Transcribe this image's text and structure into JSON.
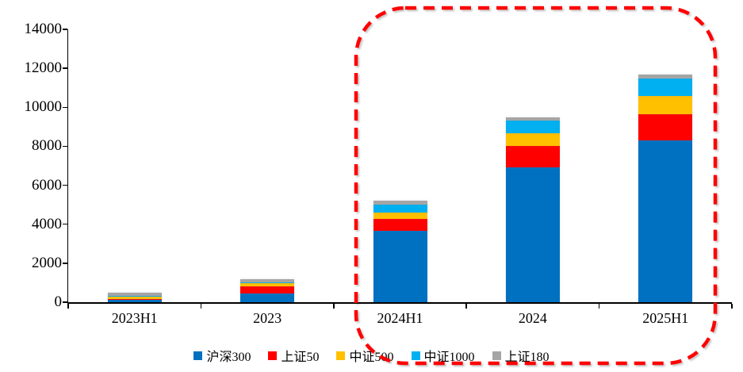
{
  "page": {
    "background": "#FFFFFF"
  },
  "chart_data": {
    "type": "bar",
    "stacked": true,
    "title": "",
    "xlabel": "",
    "ylabel": "",
    "categories": [
      "2023H1",
      "2023",
      "2024H1",
      "2024",
      "2025H1"
    ],
    "series": [
      {
        "name": "沪深300",
        "color": "#0070C0",
        "values": [
          160,
          450,
          3650,
          6900,
          8300
        ]
      },
      {
        "name": "上证50",
        "color": "#FF0000",
        "values": [
          20,
          370,
          610,
          1110,
          1360
        ]
      },
      {
        "name": "中证500",
        "color": "#FFC000",
        "values": [
          110,
          150,
          340,
          660,
          910
        ]
      },
      {
        "name": "中证1000",
        "color": "#00B0F0",
        "values": [
          20,
          30,
          410,
          640,
          890
        ]
      },
      {
        "name": "上证180",
        "color": "#A5A5A5",
        "values": [
          190,
          160,
          210,
          190,
          210
        ]
      }
    ],
    "totals": [
      500,
      1160,
      5220,
      9500,
      11670
    ],
    "ylim": [
      0,
      14000
    ],
    "yticks": [
      0,
      2000,
      4000,
      6000,
      8000,
      10000,
      12000,
      14000
    ],
    "grid": false,
    "legend_position": "bottom",
    "annotation": {
      "shape": "dashed-rounded-rect",
      "color": "#FF0000",
      "around_categories": [
        "2024H1",
        "2024",
        "2025H1"
      ]
    }
  }
}
